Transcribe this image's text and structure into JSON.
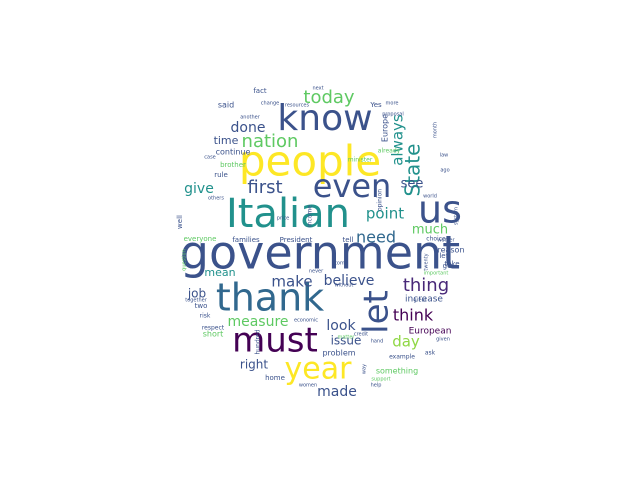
{
  "colors": {
    "background": "#ffffff",
    "palette": [
      "#440154",
      "#3b528b",
      "#21918c",
      "#5ec962",
      "#fde725"
    ]
  },
  "words": [
    {
      "text": "government",
      "weight": 1.0,
      "color": "#3b528b"
    },
    {
      "text": "Italian",
      "weight": 0.95,
      "color": "#21918c"
    },
    {
      "text": "people",
      "weight": 0.92,
      "color": "#fde725"
    },
    {
      "text": "thank",
      "weight": 0.88,
      "color": "#31688e"
    },
    {
      "text": "know",
      "weight": 0.8,
      "color": "#3b528b"
    },
    {
      "text": "must",
      "weight": 0.78,
      "color": "#440154"
    },
    {
      "text": "us",
      "weight": 0.76,
      "color": "#3b528b"
    },
    {
      "text": "let",
      "weight": 0.74,
      "color": "#3b528b"
    },
    {
      "text": "even",
      "weight": 0.72,
      "color": "#3b528b"
    },
    {
      "text": "year",
      "weight": 0.7,
      "color": "#fde725"
    },
    {
      "text": "nation",
      "weight": 0.52,
      "color": "#5ec962"
    },
    {
      "text": "State",
      "weight": 0.5,
      "color": "#21918c"
    },
    {
      "text": "today",
      "weight": 0.46,
      "color": "#5ec962"
    },
    {
      "text": "first",
      "weight": 0.46,
      "color": "#3b528b"
    },
    {
      "text": "thing",
      "weight": 0.46,
      "color": "#482878"
    },
    {
      "text": "always",
      "weight": 0.4,
      "color": "#21918c"
    },
    {
      "text": "point",
      "weight": 0.4,
      "color": "#21918c"
    },
    {
      "text": "need",
      "weight": 0.4,
      "color": "#31688e"
    },
    {
      "text": "make",
      "weight": 0.38,
      "color": "#3b528b"
    },
    {
      "text": "think",
      "weight": 0.38,
      "color": "#440154"
    },
    {
      "text": "believe",
      "weight": 0.36,
      "color": "#3b528b"
    },
    {
      "text": "done",
      "weight": 0.34,
      "color": "#3b528b"
    },
    {
      "text": "give",
      "weight": 0.34,
      "color": "#21918c"
    },
    {
      "text": "look",
      "weight": 0.34,
      "color": "#3b528b"
    },
    {
      "text": "measure",
      "weight": 0.34,
      "color": "#5ec962"
    },
    {
      "text": "day",
      "weight": 0.34,
      "color": "#8fd744"
    },
    {
      "text": "made",
      "weight": 0.32,
      "color": "#3b528b"
    },
    {
      "text": "see",
      "weight": 0.3,
      "color": "#3b528b"
    },
    {
      "text": "much",
      "weight": 0.3,
      "color": "#5ec962"
    },
    {
      "text": "job",
      "weight": 0.28,
      "color": "#3b528b"
    },
    {
      "text": "issue",
      "weight": 0.28,
      "color": "#3b528b"
    },
    {
      "text": "right",
      "weight": 0.28,
      "color": "#3b528b"
    },
    {
      "text": "mean",
      "weight": 0.26,
      "color": "#21918c"
    },
    {
      "text": "time",
      "weight": 0.24,
      "color": "#3b528b"
    },
    {
      "text": "European",
      "weight": 0.22,
      "color": "#440154"
    },
    {
      "text": "Europe",
      "weight": 0.2,
      "color": "#3b528b"
    },
    {
      "text": "increase",
      "weight": 0.2,
      "color": "#3b528b"
    },
    {
      "text": "problem",
      "weight": 0.2,
      "color": "#3b528b"
    },
    {
      "text": "something",
      "weight": 0.2,
      "color": "#5ec962"
    },
    {
      "text": "continue",
      "weight": 0.18,
      "color": "#3b528b"
    },
    {
      "text": "short",
      "weight": 0.18,
      "color": "#5ec962"
    },
    {
      "text": "home",
      "weight": 0.18,
      "color": "#3b528b"
    },
    {
      "text": "reason",
      "weight": 0.18,
      "color": "#3b528b"
    },
    {
      "text": "take",
      "weight": 0.18,
      "color": "#3b528b"
    },
    {
      "text": "said",
      "weight": 0.16,
      "color": "#3b528b"
    },
    {
      "text": "fact",
      "weight": 0.16,
      "color": "#3b528b"
    },
    {
      "text": "rule",
      "weight": 0.16,
      "color": "#3b528b"
    },
    {
      "text": "well",
      "weight": 0.16,
      "color": "#3b528b"
    },
    {
      "text": "two",
      "weight": 0.16,
      "color": "#3b528b"
    },
    {
      "text": "Yes",
      "weight": 0.16,
      "color": "#3b528b"
    },
    {
      "text": "left",
      "weight": 0.16,
      "color": "#3b528b"
    },
    {
      "text": "go",
      "weight": 0.16,
      "color": "#3b528b"
    },
    {
      "text": "tell",
      "weight": 0.16,
      "color": "#3b528b"
    },
    {
      "text": "President",
      "weight": 0.16,
      "color": "#3b528b"
    },
    {
      "text": "families",
      "weight": 0.16,
      "color": "#3b528b"
    },
    {
      "text": "everyone",
      "weight": 0.16,
      "color": "#5ec962"
    },
    {
      "text": "brother",
      "weight": 0.15,
      "color": "#5ec962"
    },
    {
      "text": "income",
      "weight": 0.13,
      "color": "#3b528b"
    },
    {
      "text": "opinion",
      "weight": 0.13,
      "color": "#3b528b"
    },
    {
      "text": "already",
      "weight": 0.13,
      "color": "#5ec962"
    },
    {
      "text": "minister",
      "weight": 0.13,
      "color": "#5ec962"
    },
    {
      "text": "choice",
      "weight": 0.13,
      "color": "#3b528b"
    },
    {
      "text": "hundred",
      "weight": 0.12,
      "color": "#3b528b"
    },
    {
      "text": "example",
      "weight": 0.12,
      "color": "#3b528b"
    },
    {
      "text": "ask",
      "weight": 0.12,
      "color": "#3b528b"
    },
    {
      "text": "respect",
      "weight": 0.12,
      "color": "#3b528b"
    },
    {
      "text": "risk",
      "weight": 0.12,
      "color": "#3b528b"
    },
    {
      "text": "twenty",
      "weight": 0.12,
      "color": "#3b528b"
    },
    {
      "text": "important",
      "weight": 0.12,
      "color": "#5ec962"
    },
    {
      "text": "another",
      "weight": 0.11,
      "color": "#3b528b"
    },
    {
      "text": "resources",
      "weight": 0.11,
      "color": "#3b528b"
    },
    {
      "text": "economic",
      "weight": 0.11,
      "color": "#3b528b"
    },
    {
      "text": "hand",
      "weight": 0.11,
      "color": "#3b528b"
    },
    {
      "text": "support",
      "weight": 0.11,
      "color": "#5ec962"
    },
    {
      "text": "price",
      "weight": 0.11,
      "color": "#3b528b"
    },
    {
      "text": "others",
      "weight": 0.1,
      "color": "#3b528b"
    },
    {
      "text": "world",
      "weight": 0.1,
      "color": "#3b528b"
    },
    {
      "text": "case",
      "weight": 0.1,
      "color": "#3b528b"
    },
    {
      "text": "system",
      "weight": 0.1,
      "color": "#3b528b"
    },
    {
      "text": "matter",
      "weight": 0.1,
      "color": "#5ec962"
    },
    {
      "text": "credit",
      "weight": 0.1,
      "color": "#3b528b"
    },
    {
      "text": "month",
      "weight": 0.1,
      "color": "#3b528b"
    },
    {
      "text": "law",
      "weight": 0.1,
      "color": "#3b528b"
    },
    {
      "text": "without",
      "weight": 0.09,
      "color": "#3b528b"
    },
    {
      "text": "great",
      "weight": 0.09,
      "color": "#3b528b"
    },
    {
      "text": "together",
      "weight": 0.09,
      "color": "#3b528b"
    },
    {
      "text": "proposal",
      "weight": 0.09,
      "color": "#3b528b"
    },
    {
      "text": "next",
      "weight": 0.09,
      "color": "#3b528b"
    },
    {
      "text": "more",
      "weight": 0.09,
      "color": "#3b528b"
    },
    {
      "text": "ago",
      "weight": 0.09,
      "color": "#3b528b"
    },
    {
      "text": "come",
      "weight": 0.09,
      "color": "#3b528b"
    },
    {
      "text": "never",
      "weight": 0.09,
      "color": "#3b528b"
    },
    {
      "text": "worker",
      "weight": 0.09,
      "color": "#3b528b"
    },
    {
      "text": "given",
      "weight": 0.09,
      "color": "#3b528b"
    },
    {
      "text": "change",
      "weight": 0.09,
      "color": "#3b528b"
    },
    {
      "text": "question",
      "weight": 0.09,
      "color": "#5ec962"
    },
    {
      "text": "help",
      "weight": 0.08,
      "color": "#3b528b"
    },
    {
      "text": "women",
      "weight": 0.08,
      "color": "#3b528b"
    },
    {
      "text": "way",
      "weight": 0.08,
      "color": "#3b528b"
    }
  ]
}
